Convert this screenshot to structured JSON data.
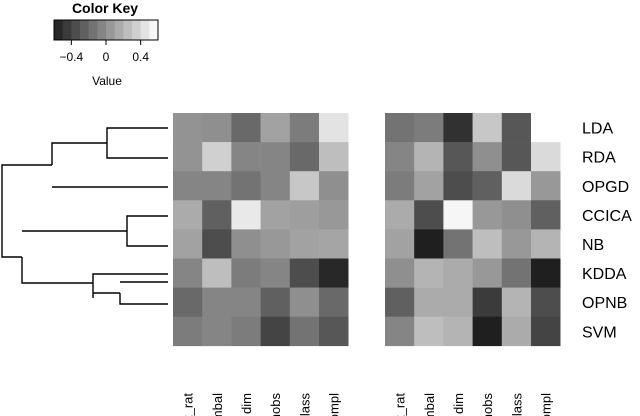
{
  "chart_data": {
    "type": "heatmap",
    "color_key": {
      "title": "Color Key",
      "xlabel": "Value",
      "ticks": [
        "−0.4",
        "0",
        "0.4"
      ],
      "tick_values": [
        -0.4,
        0,
        0.4
      ],
      "range": [
        -0.6,
        0.6
      ],
      "colors": [
        "#000000",
        "#ffffff"
      ],
      "bins": [
        -0.6,
        -0.5,
        -0.4,
        -0.3,
        -0.2,
        -0.1,
        0,
        0.1,
        0.2,
        0.3,
        0.4,
        0.5
      ]
    },
    "rows": [
      "LDA",
      "RDA",
      "OPGD",
      "CCICA",
      "NB",
      "KDDA",
      "OPNB",
      "SVM"
    ],
    "columns": [
      "cat_rat",
      "imbal",
      "dim",
      "nobs",
      "nclass",
      "compl"
    ],
    "panels": [
      {
        "values": [
          [
            0.02,
            0.0,
            -0.2,
            0.1,
            -0.1,
            0.45
          ],
          [
            0.02,
            0.35,
            -0.05,
            -0.05,
            -0.2,
            0.25
          ],
          [
            -0.05,
            -0.05,
            -0.15,
            -0.05,
            0.3,
            0.0
          ],
          [
            0.15,
            -0.25,
            0.48,
            0.1,
            0.08,
            0.05
          ],
          [
            0.1,
            -0.35,
            0.0,
            0.05,
            0.1,
            0.12
          ],
          [
            -0.05,
            0.25,
            -0.1,
            -0.05,
            -0.35,
            -0.55
          ],
          [
            -0.2,
            -0.05,
            -0.05,
            -0.25,
            0.0,
            -0.2
          ],
          [
            -0.1,
            -0.05,
            -0.1,
            -0.4,
            -0.15,
            -0.3
          ]
        ]
      },
      {
        "values": [
          [
            -0.15,
            -0.1,
            -0.5,
            0.3,
            -0.3,
            0.6
          ],
          [
            -0.05,
            0.2,
            -0.3,
            0.0,
            -0.3,
            0.4
          ],
          [
            -0.1,
            0.1,
            -0.35,
            -0.25,
            0.4,
            0.05
          ],
          [
            0.15,
            -0.35,
            0.55,
            0.05,
            0.0,
            -0.25
          ],
          [
            0.1,
            -0.6,
            -0.15,
            0.25,
            0.05,
            0.2
          ],
          [
            0.0,
            0.2,
            0.15,
            0.05,
            -0.15,
            -0.6
          ],
          [
            -0.25,
            0.15,
            0.15,
            -0.45,
            0.2,
            -0.35
          ],
          [
            -0.05,
            0.25,
            0.2,
            -0.6,
            0.15,
            -0.4
          ]
        ]
      }
    ]
  }
}
